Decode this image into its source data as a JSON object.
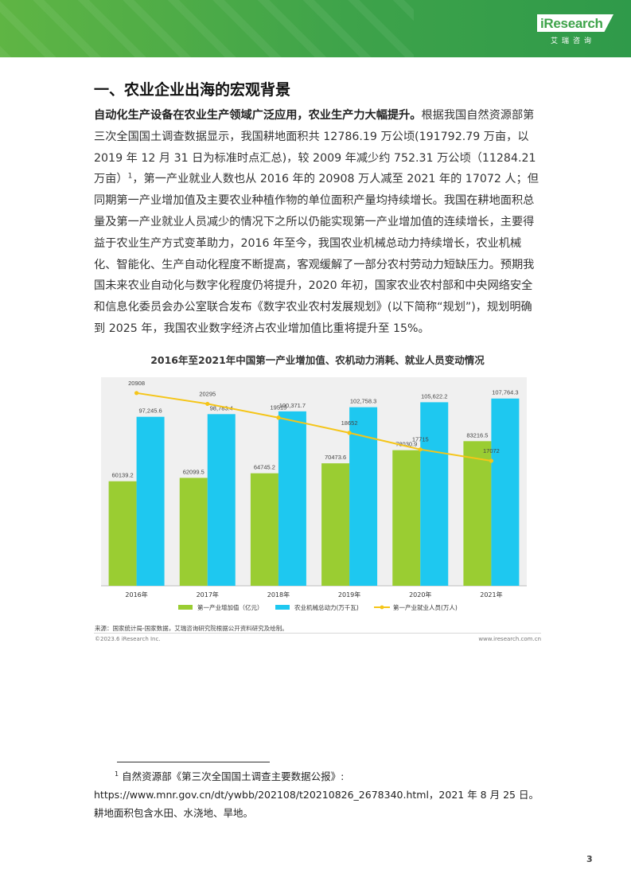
{
  "header": {
    "logo_main": "iResearch",
    "logo_sub": "艾瑞咨询"
  },
  "section": {
    "title": "一、农业企业出海的宏观背景"
  },
  "body": {
    "lead": "自动化生产设备在农业生产领域广泛应用，农业生产力大幅提升。",
    "text_before_sup": "根据我国自然资源部第三次全国国土调查数据显示，我国耕地面积共 12786.19 万公顷(191792.79 万亩，以 2019 年 12 月 31 日为标准时点汇总)，较 2009 年减少约 752.31 万公顷（11284.21 万亩）",
    "sup": "1",
    "text_after_sup": "，第一产业就业人数也从 2016 年的 20908 万人减至 2021 年的 17072 人；但同期第一产业增加值及主要农业种植作物的单位面积产量均持续增长。我国在耕地面积总量及第一产业就业人员减少的情况下之所以仍能实现第一产业增加值的连续增长，主要得益于农业生产方式变革助力，2016 年至今，我国农业机械总动力持续增长，农业机械化、智能化、生产自动化程度不断提高，客观缓解了一部分农村劳动力短缺压力。预期我国未来农业自动化与数字化程度仍将提升，2020 年初，国家农业农村部和中央网络安全和信息化委员会办公室联合发布《数字农业农村发展规划》(以下简称“规划”)，规划明确到 2025 年，我国农业数字经济占农业增加值比重将提升至 15%。"
  },
  "chart_data": {
    "type": "bar",
    "title": "2016年至2021年中国第一产业增加值、农机动力消耗、就业人员变动情况",
    "categories": [
      "2016年",
      "2017年",
      "2018年",
      "2019年",
      "2020年",
      "2021年"
    ],
    "series": [
      {
        "name": "第一产业增加值（亿元）",
        "kind": "bar",
        "color": "#9acd32",
        "values": [
          60139.2,
          62099.5,
          64745.2,
          70473.6,
          78030.9,
          83216.5
        ],
        "labels": [
          "60139.2",
          "62099.5",
          "64745.2",
          "70473.6",
          "78030.9",
          "83216.5"
        ]
      },
      {
        "name": "农业机械总动力(万千瓦)",
        "kind": "bar",
        "color": "#1ec8f0",
        "values": [
          97245.6,
          98783.4,
          100371.7,
          102758.3,
          105622.2,
          107764.3
        ],
        "labels": [
          "97,245.6",
          "98,783.4",
          "100,371.7",
          "102,758.3",
          "105,622.2",
          "107,764.3"
        ]
      },
      {
        "name": "第一产业就业人员(万人)",
        "kind": "line",
        "color": "#f5c518",
        "values": [
          20908,
          20295,
          19515,
          18652,
          17715,
          17072
        ],
        "labels": [
          "20908",
          "20295",
          "19515",
          "18652",
          "17715",
          "17072"
        ]
      }
    ],
    "bar_ylim": [
      0,
      120000
    ],
    "line_ylim": [
      10000,
      21800
    ],
    "grid": false,
    "legend_position": "bottom",
    "background": "#f0f0f0"
  },
  "chart_source": "来源：国家统计局-国家数据，艾瑞咨询研究院根据公开资料研究及绘制。",
  "footer": {
    "copyright": "©2023.6 iResearch Inc.",
    "site": "www.iresearch.com.cn"
  },
  "footnote": {
    "num": "1",
    "line1": "自然资源部《第三次全国国土调查主要数据公报》:",
    "line2": "https://www.mnr.gov.cn/dt/ywbb/202108/t20210826_2678340.html，2021 年 8 月 25 日。耕地面积包含水田、水浇地、旱地。"
  },
  "page_number": "3"
}
